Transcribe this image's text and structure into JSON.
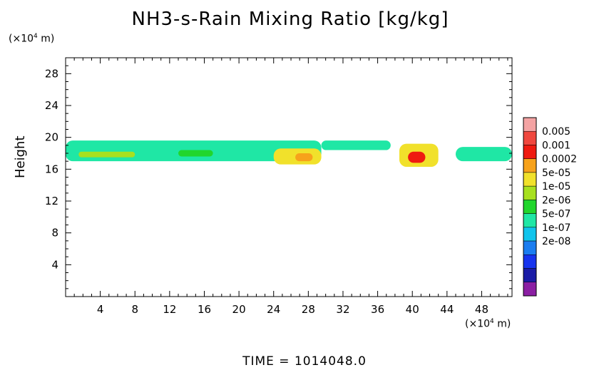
{
  "chart_data": {
    "type": "heatmap",
    "title": "NH3-s-Rain Mixing Ratio [kg/kg]",
    "ylabel": "Height",
    "y_unit": "(×10⁴ m)",
    "x_unit": "(×10⁴ m)",
    "xlim": [
      0,
      51.5
    ],
    "ylim": [
      0,
      30
    ],
    "x_ticks": [
      4,
      8,
      12,
      16,
      20,
      24,
      28,
      32,
      36,
      40,
      44,
      48
    ],
    "y_ticks": [
      4,
      8,
      12,
      16,
      20,
      24,
      28
    ],
    "colorbar": {
      "labels": [
        "0.005",
        "0.001",
        "0.0002",
        "5e-05",
        "1e-05",
        "2e-06",
        "5e-07",
        "1e-07",
        "2e-08"
      ],
      "colors": [
        "#f4a3a3",
        "#f0473e",
        "#ef1a10",
        "#f7a21b",
        "#f1e12b",
        "#a7e01f",
        "#21d62c",
        "#1fe7a5",
        "#10c4ec",
        "#1b7df0",
        "#1734ee",
        "#1a1ca6",
        "#8b1fa3"
      ]
    },
    "regions": [
      {
        "x": [
          0,
          29.5
        ],
        "y": [
          17.0,
          19.6
        ],
        "level": "5e-07"
      },
      {
        "x": [
          1.5,
          8
        ],
        "y": [
          17.5,
          18.2
        ],
        "level": "1e-05"
      },
      {
        "x": [
          13,
          17
        ],
        "y": [
          17.6,
          18.4
        ],
        "level": "2e-06"
      },
      {
        "x": [
          24,
          29.5
        ],
        "y": [
          16.6,
          18.6
        ],
        "level": "5e-05"
      },
      {
        "x": [
          26.5,
          28.5
        ],
        "y": [
          17.0,
          18.0
        ],
        "level": "0.0002"
      },
      {
        "x": [
          29.5,
          37.5
        ],
        "y": [
          18.4,
          19.6
        ],
        "level": "5e-07"
      },
      {
        "x": [
          38.5,
          43
        ],
        "y": [
          16.3,
          19.2
        ],
        "level": "5e-05"
      },
      {
        "x": [
          39.5,
          41.5
        ],
        "y": [
          16.8,
          18.2
        ],
        "level": "0.001"
      },
      {
        "x": [
          45,
          51.5
        ],
        "y": [
          17.0,
          18.8
        ],
        "level": "5e-07"
      }
    ]
  },
  "footer": "TIME  =  1014048.0"
}
